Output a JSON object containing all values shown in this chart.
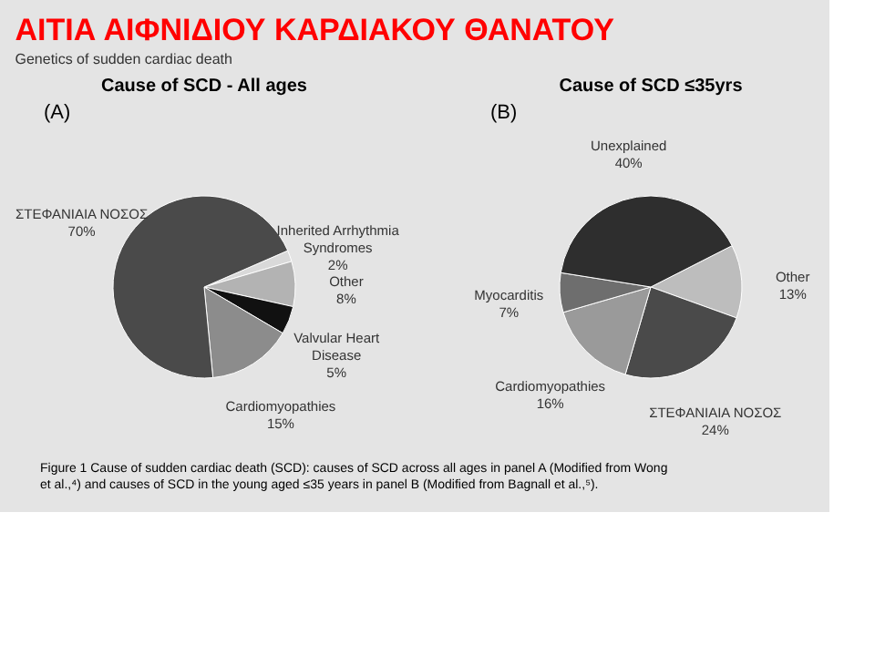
{
  "chart_data": [
    {
      "type": "pie",
      "title": "Cause of SCD - All ages",
      "annotations": [
        "ΑΙΤΙΑ ΑΙΦΝΙΔΙΟΥ ΚΑΡΔΙΑΚΟΥ ΘΑΝΑΤΟΥ",
        "Genetics of sudden cardiac death",
        "(A)",
        "Figure 1 Cause of sudden cardiac death (SCD): causes of SCD across all ages in panel A (Modified from Wong et al.,⁴) and causes of SCD in the young aged ≤35 years in panel B (Modified from Bagnall et al.,⁵)."
      ],
      "categories": [
        "Inherited Arrhythmia Syndromes",
        "Other",
        "Valvular Heart Disease",
        "Cardiomyopathies",
        "ΣΤΕΦΑΝΙΑΙΑ ΝΟΣΟΣ"
      ],
      "values": [
        2,
        8,
        5,
        15,
        70
      ],
      "value_labels": [
        "2%",
        "8%",
        "5%",
        "15%",
        "70%"
      ],
      "colors": [
        "#d9d9d9",
        "#b3b3b3",
        "#111111",
        "#8c8c8c",
        "#4a4a4a"
      ]
    },
    {
      "type": "pie",
      "title": "Cause of SCD ≤35yrs",
      "annotations": [
        "(B)"
      ],
      "categories": [
        "Other",
        "ΣΤΕΦΑΝΙΑΙΑ ΝΟΣΟΣ",
        "Cardiomyopathies",
        "Myocarditis",
        "Unexplained"
      ],
      "values": [
        13,
        24,
        16,
        7,
        40
      ],
      "value_labels": [
        "13%",
        "24%",
        "16%",
        "7%",
        "40%"
      ],
      "colors": [
        "#bdbdbd",
        "#4a4a4a",
        "#9a9a9a",
        "#6e6e6e",
        "#2e2e2e"
      ]
    }
  ]
}
